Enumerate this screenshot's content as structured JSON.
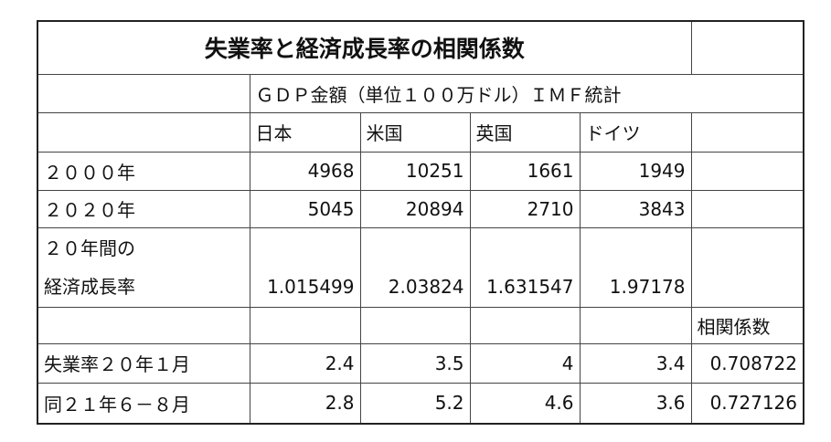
{
  "table": {
    "title": "失業率と経済成長率の相関係数",
    "gdp_header": "ＧＤＰ金額（単位１００万ドル）ＩＭＦ統計",
    "countries": [
      "日本",
      "米国",
      "英国",
      "ドイツ"
    ],
    "gdp_rows": [
      {
        "label": "２０００年",
        "values": [
          "4968",
          "10251",
          "1661",
          "1949"
        ]
      },
      {
        "label": "２０２０年",
        "values": [
          "5045",
          "20894",
          "2710",
          "3843"
        ]
      }
    ],
    "growth": {
      "label": [
        "２０年間の",
        "経済成長率"
      ],
      "values": [
        "1.015499",
        "2.03824",
        "1.631547",
        "1.97178"
      ]
    },
    "correlation_header": "相関係数",
    "unemployment_rows": [
      {
        "label": "失業率２０年１月",
        "values": [
          "2.4",
          "3.5",
          "4",
          "3.4"
        ],
        "correlation": "0.708722"
      },
      {
        "label": "同２１年６－８月",
        "values": [
          "2.8",
          "5.2",
          "4.6",
          "3.6"
        ],
        "correlation": "0.727126"
      }
    ]
  }
}
